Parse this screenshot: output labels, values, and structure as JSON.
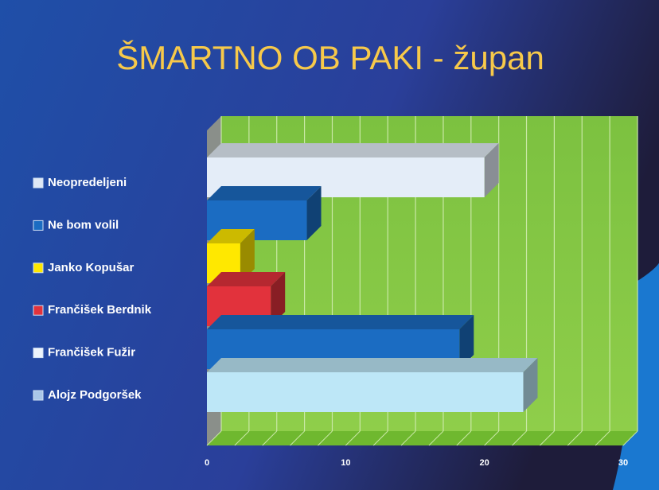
{
  "chart_data": {
    "type": "bar3d",
    "orientation": "horizontal",
    "title": "ŠMARTNO OB PAKI - župan",
    "categories": [
      "Neopredeljeni",
      "Ne bom volil",
      "Janko Kopušar",
      "Frančišek Berdnik",
      "Frančišek Fužir",
      "Alojz Podgoršek"
    ],
    "values": [
      20,
      7.2,
      2.4,
      4.6,
      18.2,
      22.8
    ],
    "colors": [
      "#e4edf8",
      "#1b6cc2",
      "#ffe800",
      "#e2323c",
      "#1b6cc2",
      "#bde7f7"
    ],
    "legend_colors": [
      "#dfe8f5",
      "#1b6cc2",
      "#ffe800",
      "#e2323c",
      "#eef4fb",
      "#a9c6e8"
    ],
    "xlim": [
      0,
      30
    ],
    "xticks": [
      0,
      10,
      20,
      30
    ],
    "minor_xticks": [
      2,
      4,
      6,
      8,
      12,
      14,
      16,
      18,
      22,
      24,
      26,
      28
    ],
    "grid": true,
    "legend": "left"
  }
}
